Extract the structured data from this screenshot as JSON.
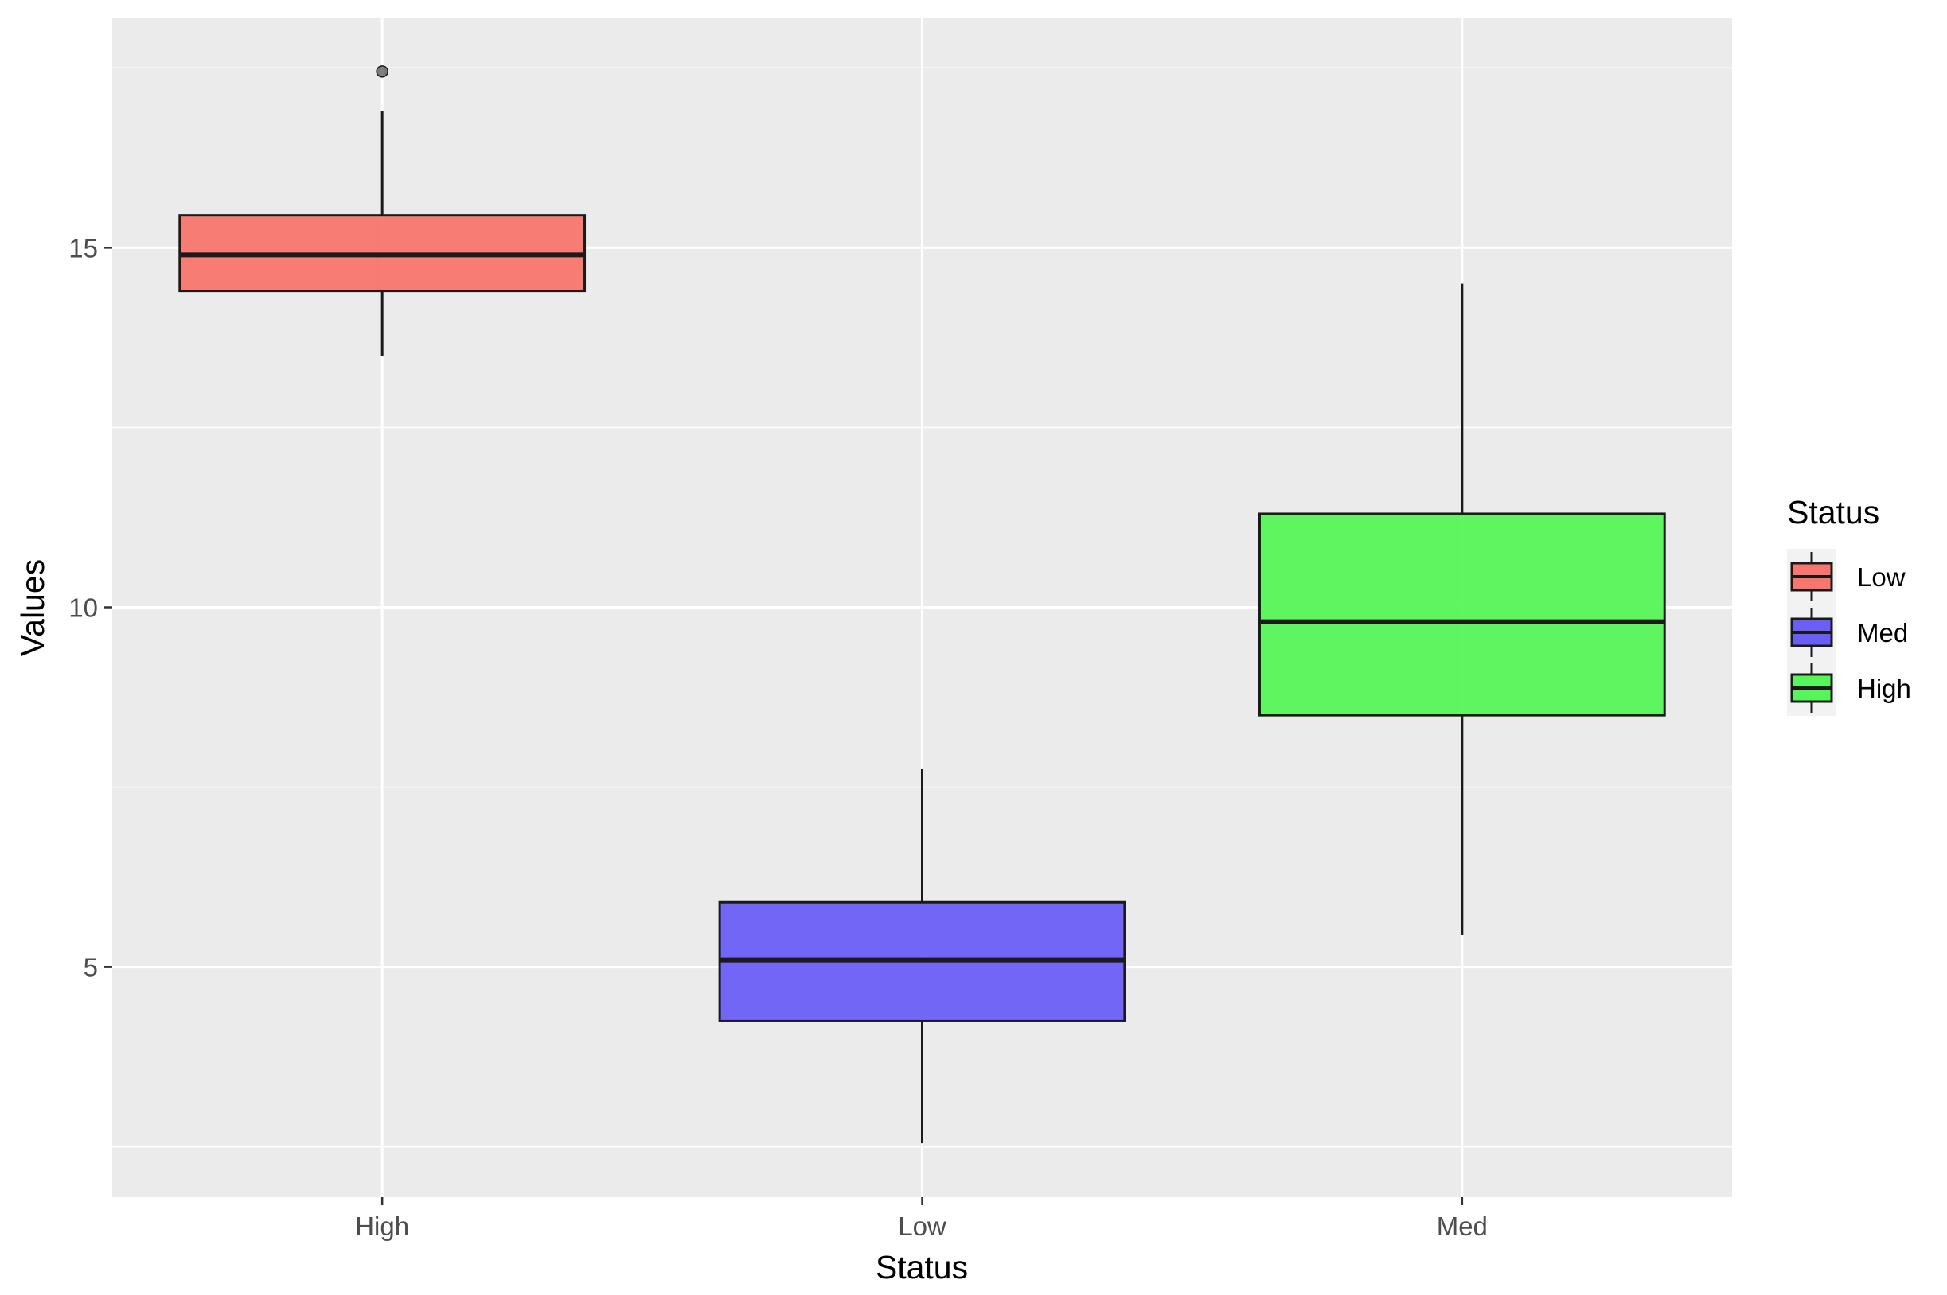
{
  "chart_data": {
    "type": "boxplot",
    "xlabel": "Status",
    "ylabel": "Values",
    "categories": [
      "High",
      "Low",
      "Med"
    ],
    "ylim": [
      1.8,
      18.2
    ],
    "y_ticks": [
      5,
      10,
      15
    ],
    "y_tick_labels": [
      "5",
      "10",
      "15"
    ],
    "grid": true,
    "panel_background": "#ebebeb",
    "boxes": [
      {
        "category": "High",
        "fill_group": "Low",
        "color": "#f8766d",
        "whisker_low": 13.5,
        "q1": 14.4,
        "median": 14.9,
        "q3": 15.45,
        "whisker_high": 16.9,
        "outliers": [
          17.45
        ]
      },
      {
        "category": "Low",
        "fill_group": "Med",
        "color": "#6a5ff5",
        "whisker_low": 2.55,
        "q1": 4.25,
        "median": 5.1,
        "q3": 5.9,
        "whisker_high": 7.75,
        "outliers": []
      },
      {
        "category": "Med",
        "fill_group": "High",
        "color": "#56f55a",
        "whisker_low": 5.45,
        "q1": 8.5,
        "median": 9.8,
        "q3": 11.3,
        "whisker_high": 14.5,
        "outliers": []
      }
    ],
    "legend": {
      "title": "Status",
      "placement": "right",
      "entries": [
        {
          "label": "Low",
          "color": "#f8766d"
        },
        {
          "label": "Med",
          "color": "#6a5ff5"
        },
        {
          "label": "High",
          "color": "#56f55a"
        }
      ]
    }
  }
}
